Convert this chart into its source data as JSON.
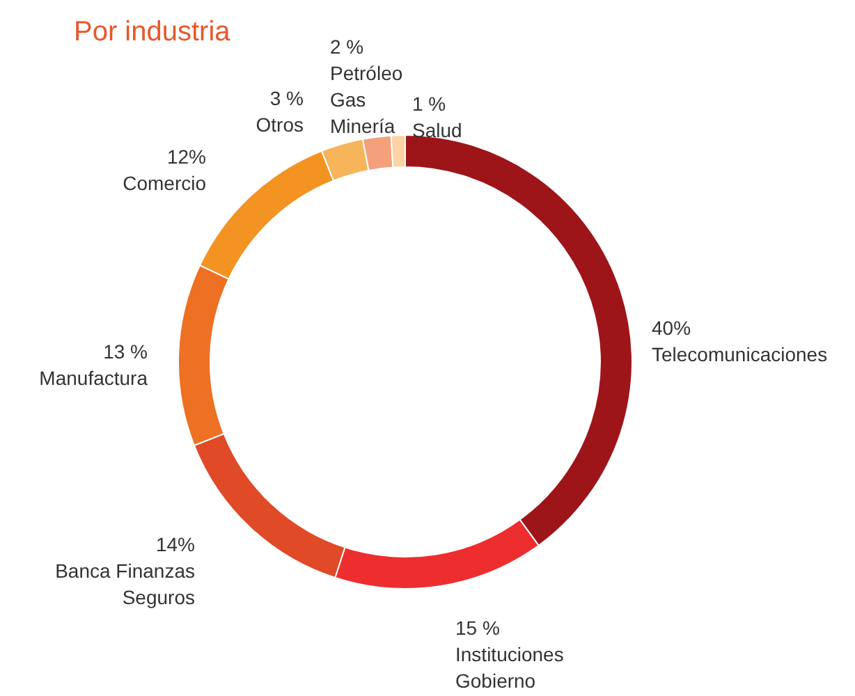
{
  "chart_data": {
    "type": "donut",
    "title": "Por industria",
    "categories": [
      "Telecomunicaciones",
      "Instituciones\nGobierno",
      "Banca Finanzas\nSeguros",
      "Manufactura",
      "Comercio",
      "Otros",
      "Petróleo\nGas\nMinería",
      "Salud"
    ],
    "values": [
      40,
      15,
      14,
      13,
      12,
      3,
      2,
      1
    ],
    "value_labels": [
      "40%",
      "15 %",
      "14%",
      "13 %",
      "12%",
      "3 %",
      "2 %",
      "1 %"
    ],
    "colors": [
      "#9e1519",
      "#ee2e2e",
      "#e04a26",
      "#ee7023",
      "#f39321",
      "#f6b55a",
      "#f4a07a",
      "#fbd3a7"
    ],
    "legend": false
  }
}
